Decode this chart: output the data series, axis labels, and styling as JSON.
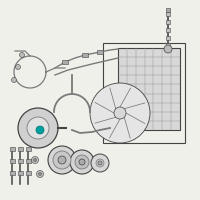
{
  "bg_color": "#f0f0eb",
  "line_color": "#7a7a7a",
  "dark_color": "#444444",
  "mid_color": "#999999",
  "light_fill": "#d8d8d8",
  "highlight_color": "#00a0a0",
  "figsize": [
    2.0,
    2.0
  ],
  "dpi": 100
}
